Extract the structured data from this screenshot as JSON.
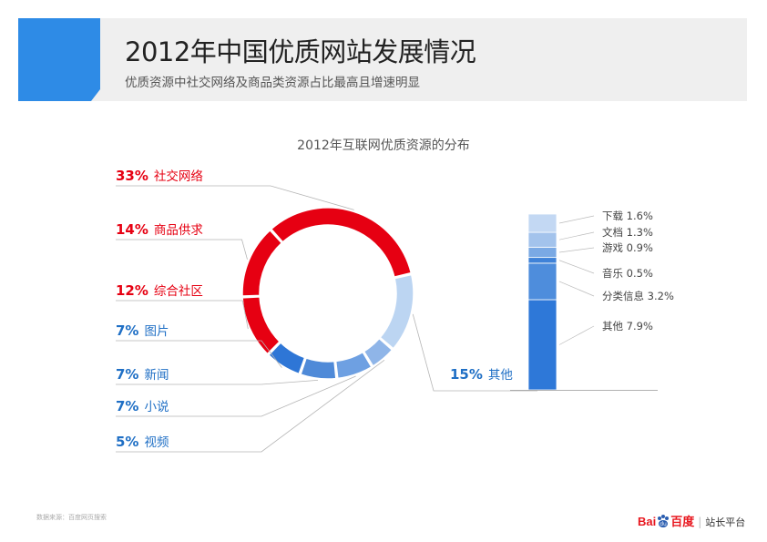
{
  "header": {
    "title": "2012年中国优质网站发展情况",
    "subtitle": "优质资源中社交网络及商品类资源占比最高且增速明显",
    "accent_color": "#2e8be6",
    "band_color": "#efefef"
  },
  "footer": {
    "source": "数据来源：百度网页搜索",
    "logo_bai": "Bai",
    "logo_du": "百度",
    "logo_platform": "站长平台",
    "logo_icon": "baidu-paw-icon"
  },
  "chart_data": [
    {
      "type": "pie",
      "title": "2012年互联网优质资源的分布",
      "donut": true,
      "slices": [
        {
          "label": "社交网络",
          "pct_text": "33%",
          "value": 33,
          "color": "#e60012",
          "label_color": "#e60012"
        },
        {
          "label": "其他",
          "pct_text": "15%",
          "value": 15,
          "color": "#bcd5f2",
          "label_color": "#1f6fc5"
        },
        {
          "label": "视频",
          "pct_text": "5%",
          "value": 5,
          "color": "#8fb5e8",
          "label_color": "#1f6fc5"
        },
        {
          "label": "小说",
          "pct_text": "7%",
          "value": 7,
          "color": "#6ea0e2",
          "label_color": "#1f6fc5"
        },
        {
          "label": "新闻",
          "pct_text": "7%",
          "value": 7,
          "color": "#4f8ad8",
          "label_color": "#1f6fc5"
        },
        {
          "label": "图片",
          "pct_text": "7%",
          "value": 7,
          "color": "#2e76d6",
          "label_color": "#1f6fc5"
        },
        {
          "label": "综合社区",
          "pct_text": "12%",
          "value": 12,
          "color": "#e60012",
          "label_color": "#e60012"
        },
        {
          "label": "商品供求",
          "pct_text": "14%",
          "value": 14,
          "color": "#e60012",
          "label_color": "#e60012"
        }
      ]
    },
    {
      "type": "bar",
      "stacked": true,
      "breakdown_of": "其他",
      "segments": [
        {
          "label": "其他",
          "value": 7.9,
          "text": "其他 7.9%",
          "color": "#2e78d8"
        },
        {
          "label": "分类信息",
          "value": 3.2,
          "text": "分类信息 3.2%",
          "color": "#4e8ddc"
        },
        {
          "label": "音乐",
          "value": 0.5,
          "text": "音乐 0.5%",
          "color": "#3f82d8"
        },
        {
          "label": "游戏",
          "value": 0.9,
          "text": "游戏 0.9%",
          "color": "#7aa9e4"
        },
        {
          "label": "文档",
          "value": 1.3,
          "text": "文档 1.3%",
          "color": "#a3c3ec"
        },
        {
          "label": "下载",
          "value": 1.6,
          "text": "下载 1.6%",
          "color": "#c3d8f3"
        }
      ]
    }
  ]
}
